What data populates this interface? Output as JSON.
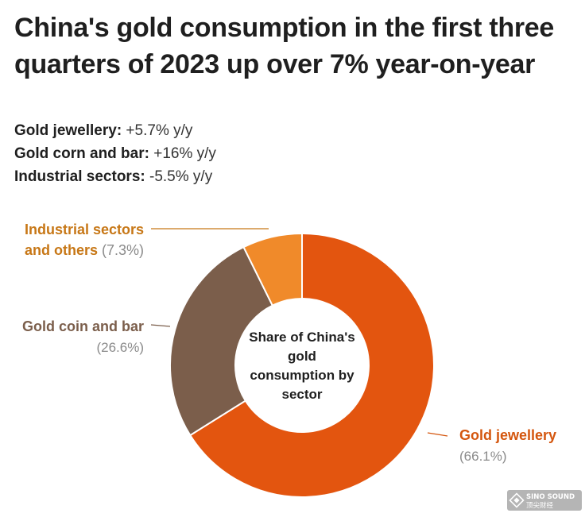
{
  "title": "China's gold consumption in the first three quarters of 2023 up over 7% year-on-year",
  "stats": [
    {
      "label": "Gold jewellery:",
      "value": " +5.7% y/y"
    },
    {
      "label": "Gold corn and bar:",
      "value": " +16% y/y"
    },
    {
      "label": "Industrial sectors:",
      "value": " -5.5% y/y"
    }
  ],
  "chart_data": {
    "type": "pie",
    "title": "Share of China's gold consumption by sector",
    "center_label_lines": [
      "Share of China's",
      "gold",
      "consumption by",
      "sector"
    ],
    "slices": [
      {
        "name": "Gold jewellery",
        "value": 66.1,
        "pct_label": "(66.1%)",
        "color": "#e3550f"
      },
      {
        "name": "Gold coin and bar",
        "value": 26.6,
        "pct_label": "(26.6%)",
        "color": "#7b5e4b"
      },
      {
        "name": "Industrial sectors and others",
        "value": 7.3,
        "pct_label": "(7.3%)",
        "color": "#f08a2a"
      }
    ],
    "label_lines": {
      "Gold jewellery": [
        "Gold jewellery"
      ],
      "Gold coin and bar": [
        "Gold coin and bar"
      ],
      "Industrial sectors and others": [
        "Industrial sectors",
        "and others"
      ]
    },
    "label_colors": {
      "Gold jewellery": "#d4560e",
      "Gold coin and bar": "#7b5e4b",
      "Industrial sectors and others": "#c77716"
    },
    "pct_color": "#8a8a8a"
  },
  "watermark": {
    "line1": "SINO SOUND",
    "line2": "顶尖财经"
  }
}
